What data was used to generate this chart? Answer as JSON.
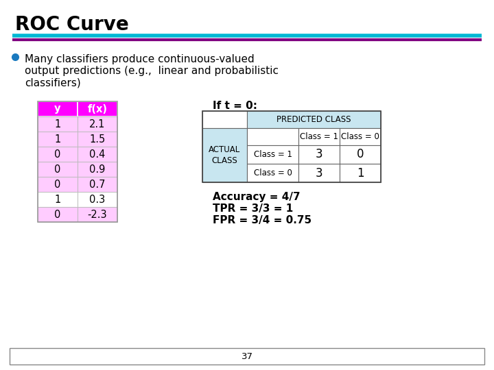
{
  "title": "ROC Curve",
  "title_fontsize": 20,
  "title_fontweight": "bold",
  "bg_color": "#ffffff",
  "line1_color": "#00b8d4",
  "line2_color": "#800080",
  "bullet_color": "#1a7abf",
  "table_left_header_color": "#ff00ff",
  "table_left_header_text_color": "#ffffff",
  "table_row_colors_y": [
    "#ffccff",
    "#ffccff",
    "#ffccff",
    "#ffccff",
    "#ffccff",
    "#ffffff",
    "#ffccff"
  ],
  "table_y_values": [
    "1",
    "1",
    "0",
    "0",
    "0",
    "1",
    "0"
  ],
  "table_fx_values": [
    "2.1",
    "1.5",
    "0.4",
    "0.9",
    "0.7",
    "0.3",
    "-2.3"
  ],
  "if_t_text": "If t = 0:",
  "predicted_class_header_color": "#c8e6f0",
  "confusion_matrix": {
    "header": "PREDICTED CLASS",
    "col1": "Class = 1",
    "col2": "Class = 0",
    "row1_label": "Class = 1",
    "row2_label": "Class = 0",
    "row1_vals": [
      "3",
      "0"
    ],
    "row2_vals": [
      "3",
      "1"
    ],
    "actual_label": "ACTUAL\nCLASS",
    "actual_bg": "#c8e6f0"
  },
  "accuracy_lines": [
    "Accuracy = 4/7",
    "TPR = 3/3 = 1",
    "FPR = 3/4 = 0.75"
  ],
  "page_number": "37"
}
